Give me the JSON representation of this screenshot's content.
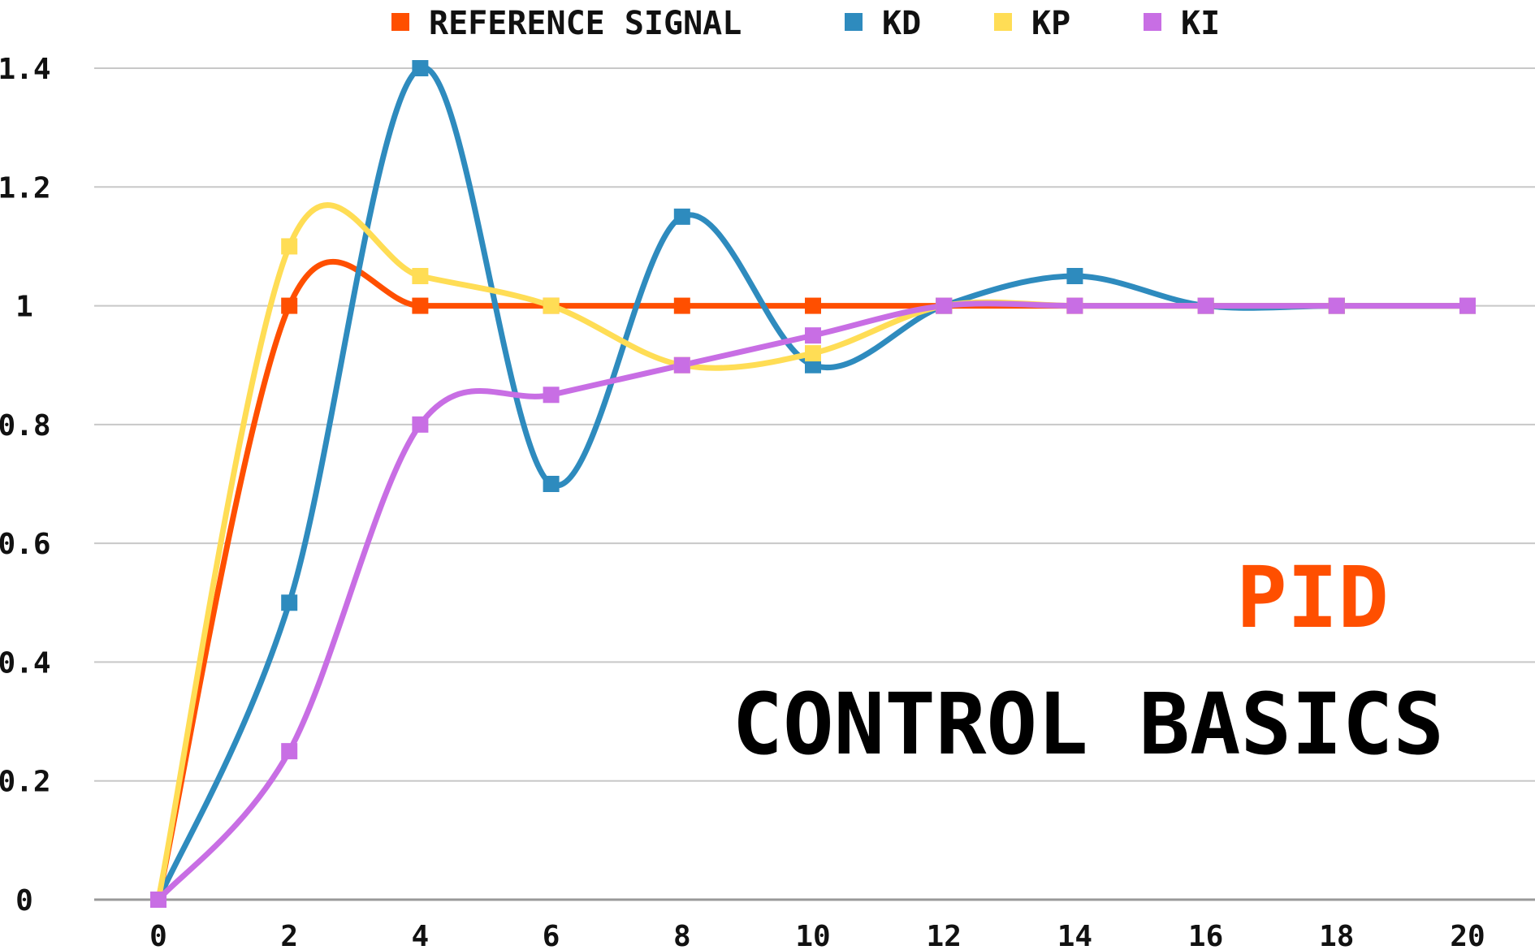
{
  "chart_data": {
    "type": "line",
    "title": "PID",
    "subtitle": "CONTROL BASICS",
    "title_color": "#FF4F00",
    "x": [
      0,
      2,
      4,
      6,
      8,
      10,
      12,
      14,
      16,
      18,
      20
    ],
    "x_tick_labels": [
      "0",
      "2",
      "4",
      "6",
      "8",
      "10",
      "12",
      "14",
      "16",
      "18",
      "20"
    ],
    "y_tick_labels": [
      "0",
      "0.2",
      "0.4",
      "0.6",
      "0.8",
      "1",
      "1.2",
      "1.4"
    ],
    "y_ticks": [
      0,
      0.2,
      0.4,
      0.6,
      0.8,
      1,
      1.2,
      1.4
    ],
    "xlim": [
      0,
      20
    ],
    "ylim": [
      0,
      1.4
    ],
    "grid": "horizontal",
    "legend_position": "top",
    "smooth": true,
    "marker": "square",
    "series": [
      {
        "name": "REFERENCE SIGNAL",
        "color": "#FF4F00",
        "values": [
          0,
          1,
          1,
          1,
          1,
          1,
          1,
          1,
          1,
          1,
          1
        ]
      },
      {
        "name": "KD",
        "color": "#2E8BBE",
        "values": [
          0,
          0.5,
          1.4,
          0.7,
          1.15,
          0.9,
          1,
          1.05,
          1,
          1,
          1
        ]
      },
      {
        "name": "KP",
        "color": "#FFDD55",
        "values": [
          0,
          1.1,
          1.05,
          1,
          0.9,
          0.92,
          1,
          1,
          1,
          1,
          1
        ]
      },
      {
        "name": "KI",
        "color": "#C86EE4",
        "values": [
          0,
          0.25,
          0.8,
          0.85,
          0.9,
          0.95,
          1,
          1,
          1,
          1,
          1
        ]
      }
    ]
  }
}
